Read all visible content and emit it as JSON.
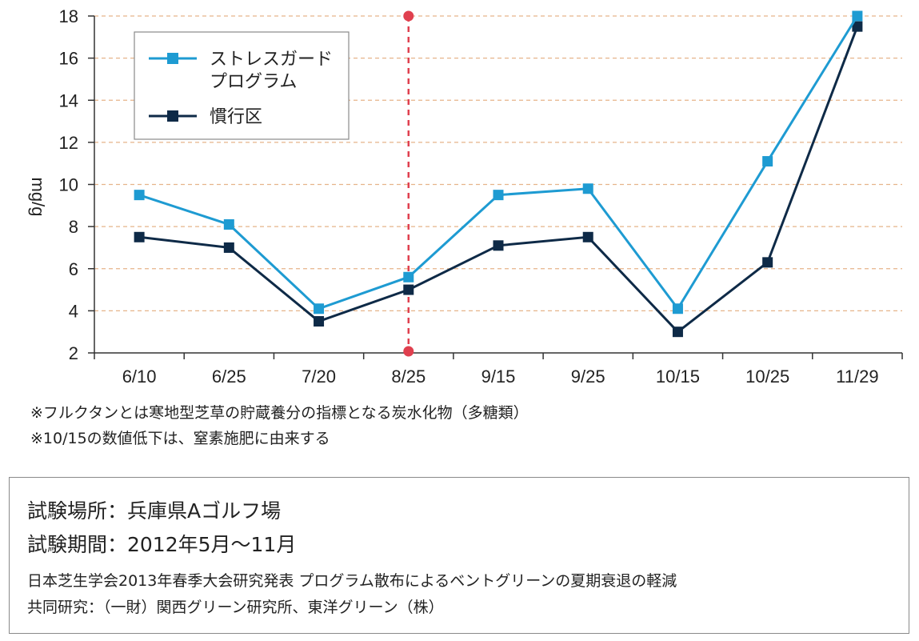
{
  "chart_data": {
    "type": "line",
    "title": "",
    "xlabel": "",
    "ylabel": "mg/g",
    "categories": [
      "6/10",
      "6/25",
      "7/20",
      "8/25",
      "9/15",
      "9/25",
      "10/15",
      "10/25",
      "11/29"
    ],
    "ylim": [
      2,
      18
    ],
    "yticks": [
      2,
      4,
      6,
      8,
      10,
      12,
      14,
      16,
      18
    ],
    "grid": "horizontal-dashed",
    "legend_placement": "top-left",
    "series": [
      {
        "name": "ストレスガードプログラム",
        "legend_lines": [
          "ストレスガード",
          "プログラム"
        ],
        "color": "#1e9bd2",
        "marker": "square",
        "values": [
          9.5,
          8.1,
          4.1,
          5.6,
          9.5,
          9.8,
          4.1,
          11.1,
          18.0
        ]
      },
      {
        "name": "慣行区",
        "legend_lines": [
          "慣行区"
        ],
        "color": "#0e2a47",
        "marker": "square",
        "values": [
          7.5,
          7.0,
          3.5,
          5.0,
          7.1,
          7.5,
          3.0,
          6.3,
          17.5
        ]
      }
    ],
    "annotations": [
      {
        "type": "vertical-dashed-line",
        "at": "8/25",
        "color": "#e0404f"
      }
    ]
  },
  "notes": [
    "※フルクタンとは寒地型芝草の貯蔵養分の指標となる炭水化物（多糖類）",
    "※10/15の数値低下は、窒素施肥に由来する"
  ],
  "info": {
    "location": "試験場所：兵庫県Aゴルフ場",
    "period": "試験期間：2012年5月～11月",
    "presentation": "日本芝生学会2013年春季大会研究発表 プログラム散布によるベントグリーンの夏期衰退の軽減",
    "research": "共同研究：（一財）関西グリーン研究所、東洋グリーン（株）"
  },
  "colors": {
    "grid": "#e6b48a",
    "axis": "#333333",
    "box_border": "#8a8a8a"
  }
}
